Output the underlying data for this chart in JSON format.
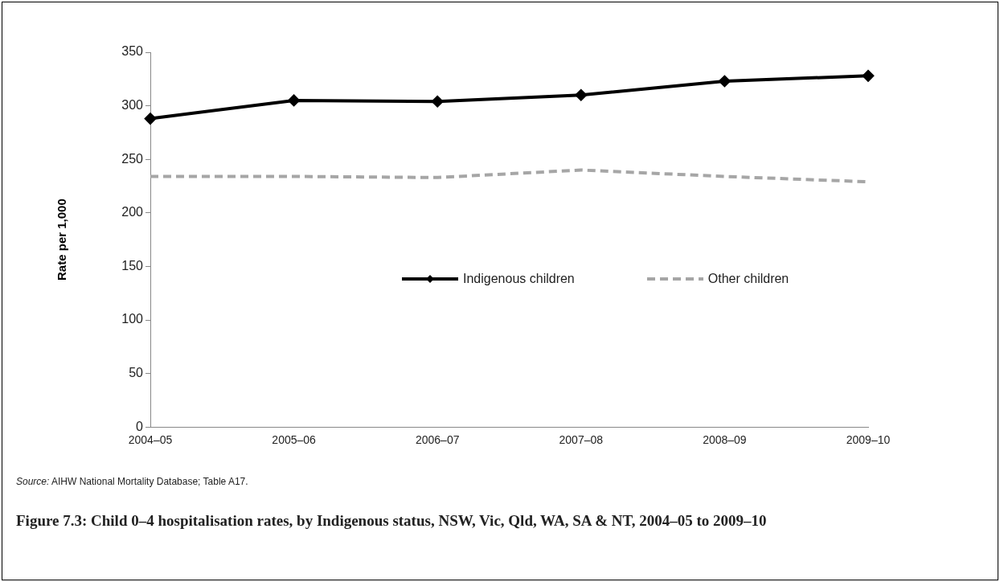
{
  "chart_data": {
    "type": "line",
    "title": "Figure 7.3: Child 0–4 hospitalisation rates, by Indigenous status, NSW, Vic, Qld, WA, SA & NT, 2004–05 to 2009–10",
    "ylabel": "Rate per 1,000",
    "annotations": [
      "Source: AIHW National Mortality Database; Table A17."
    ],
    "categories": [
      "2004–05",
      "2005–06",
      "2006–07",
      "2007–08",
      "2008–09",
      "2009–10"
    ],
    "series": [
      {
        "name": "Indigenous children",
        "color": "#000000",
        "values": [
          288,
          305,
          304,
          310,
          323,
          328
        ],
        "marker": "diamond",
        "line_style": "solid"
      },
      {
        "name": "Other children",
        "color": "#a6a6a6",
        "values": [
          234,
          234,
          233,
          240,
          234,
          229
        ],
        "marker": "none",
        "line_style": "dashed"
      }
    ],
    "ylim": [
      0,
      350
    ],
    "yticks": [
      0,
      50,
      100,
      150,
      200,
      250,
      300,
      350
    ],
    "grid": false,
    "legend": "right"
  }
}
